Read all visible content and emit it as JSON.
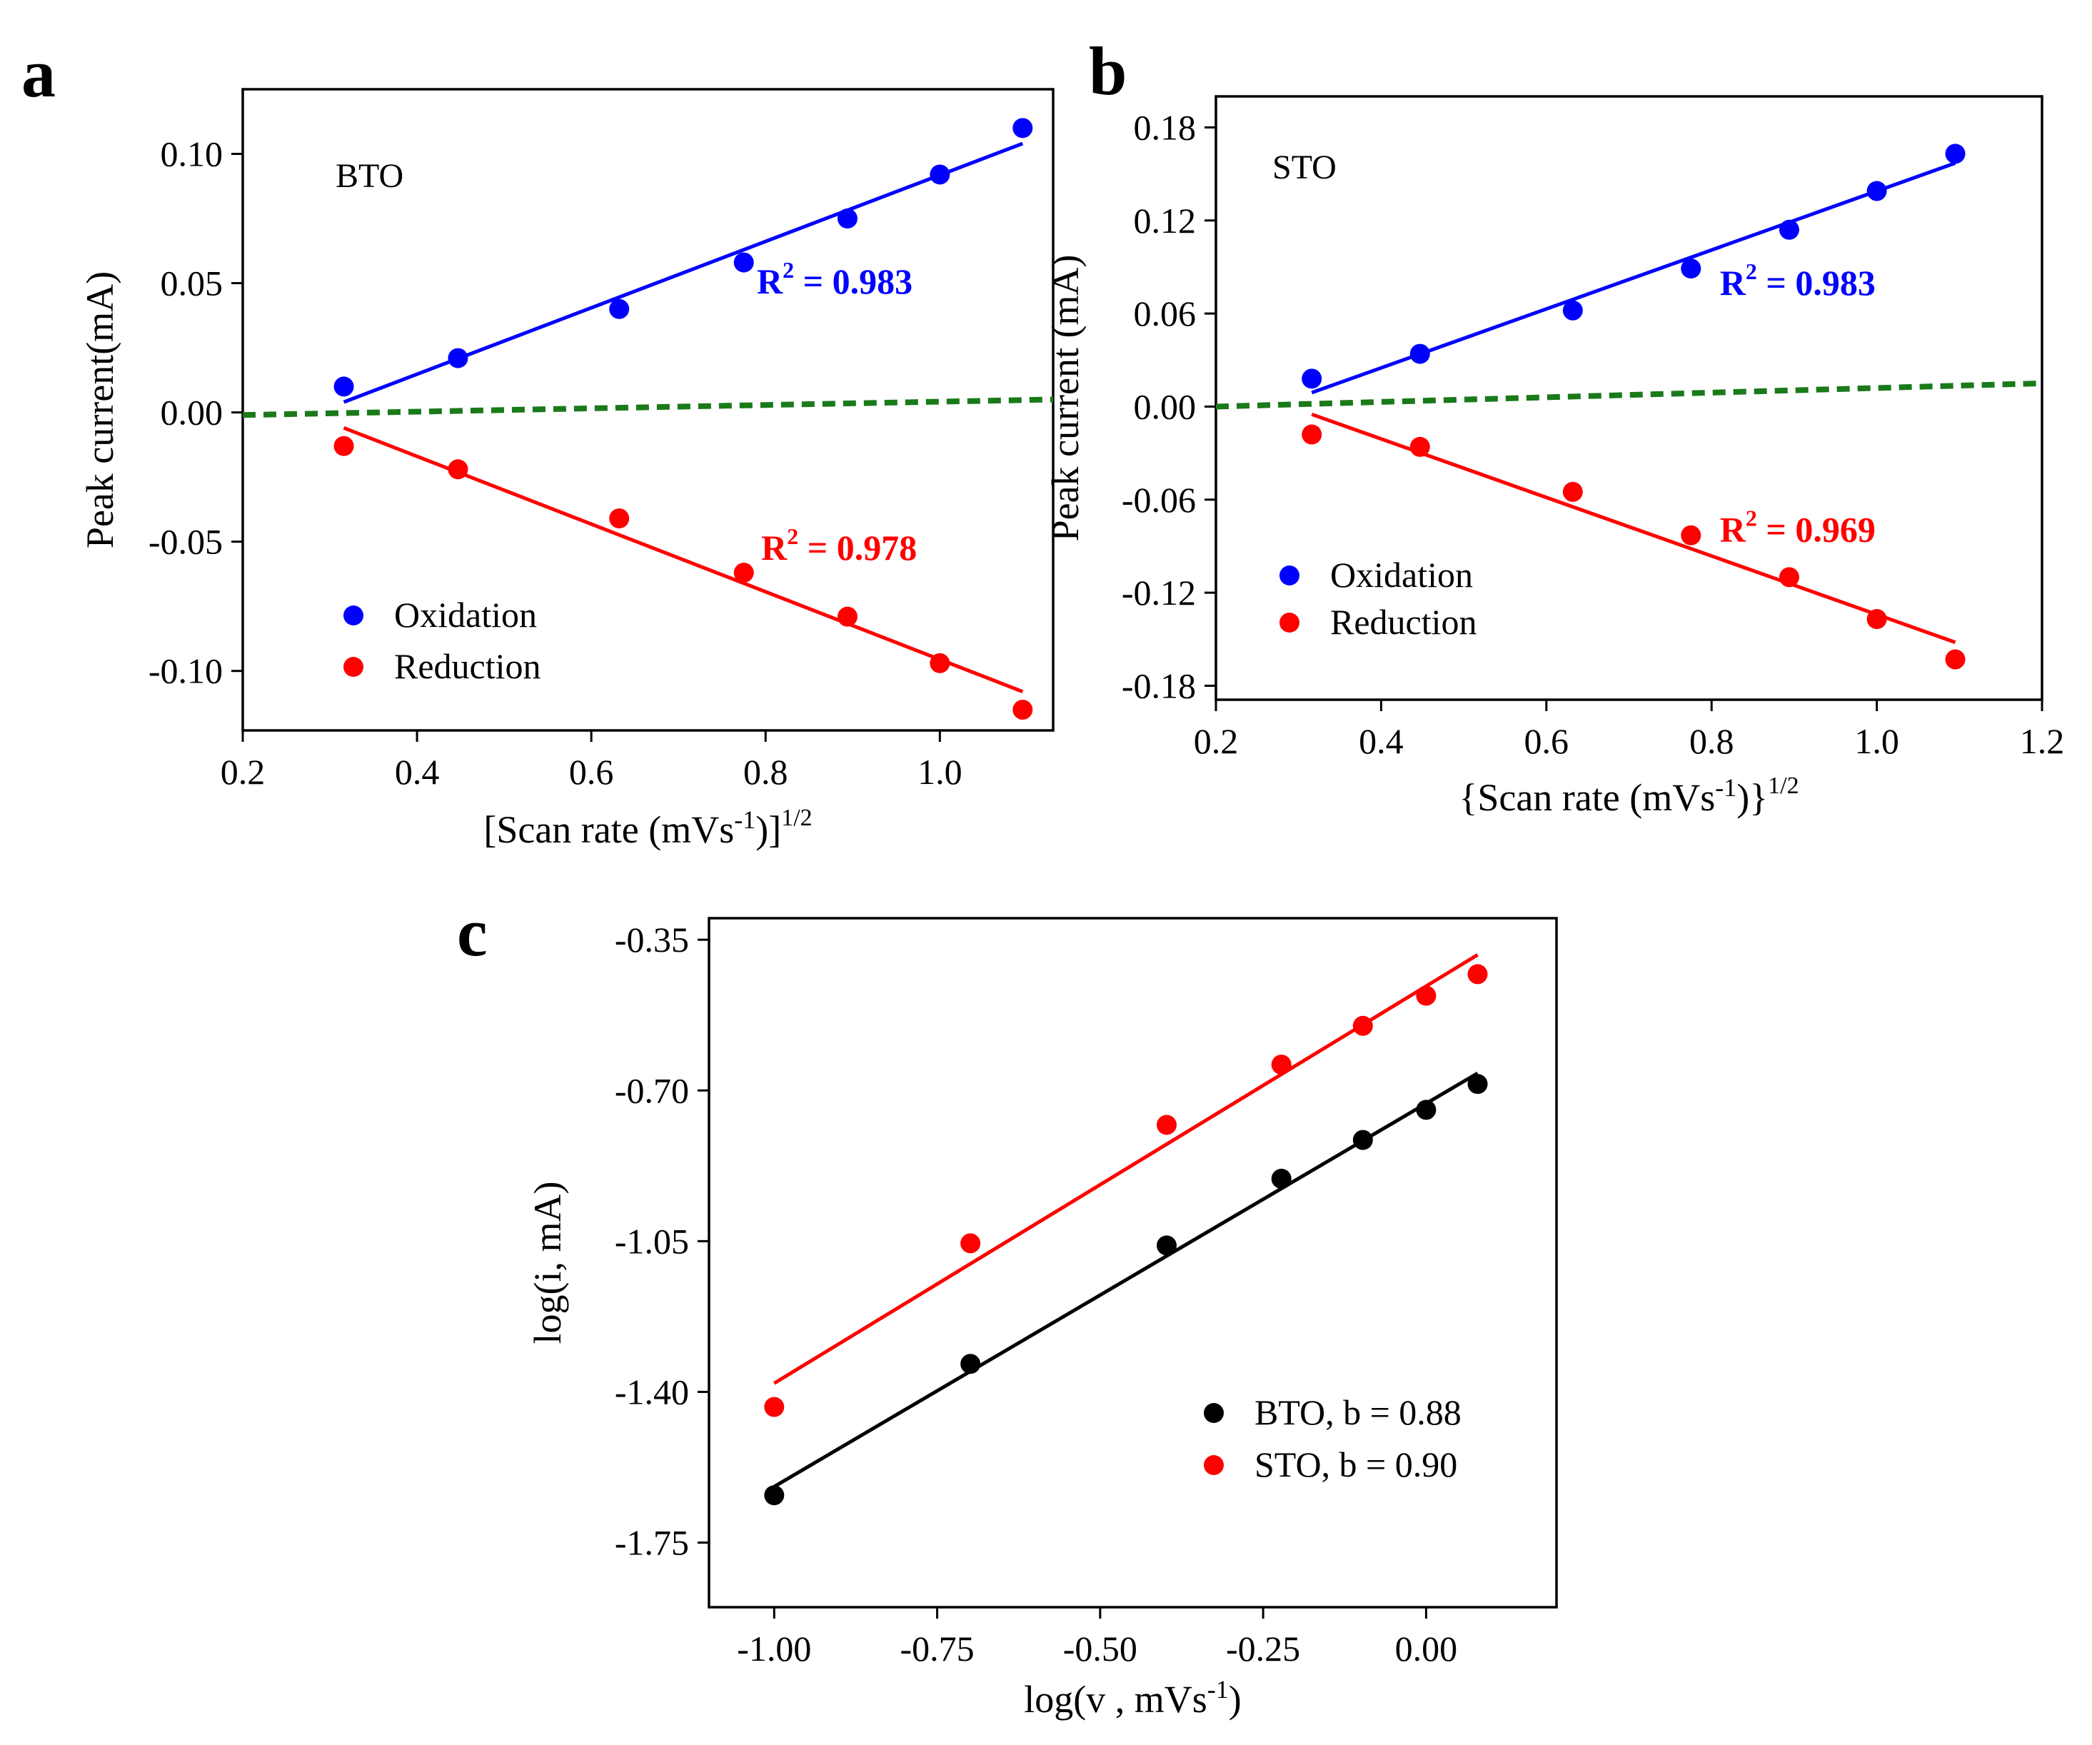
{
  "figure": {
    "panels": [
      "a",
      "b",
      "c"
    ]
  },
  "chart_data": [
    {
      "id": "a",
      "type": "scatter",
      "panel_label": "a",
      "annotation": "BTO",
      "xlabel": "[Scan rate (mVs-1)]1/2",
      "xlabel_parts": {
        "pre": "[Scan rate (mVs",
        "sup1": "-1",
        "mid": ")]",
        "sup2": "1/2"
      },
      "ylabel": "Peak current(mA)",
      "xlim": [
        0.2,
        1.13
      ],
      "ylim": [
        -0.123,
        0.125
      ],
      "xticks": [
        0.2,
        0.4,
        0.6,
        0.8,
        1.0
      ],
      "xtick_labels": [
        "0.2",
        "0.4",
        "0.6",
        "0.8",
        "1.0"
      ],
      "yticks": [
        0.1,
        0.05,
        0.0,
        -0.05,
        -0.1
      ],
      "ytick_labels": [
        "0.10",
        "0.05",
        "0.00",
        "-0.05",
        "-0.10"
      ],
      "series": [
        {
          "name": "Oxidation",
          "color": "#0000ff",
          "x": [
            0.316,
            0.447,
            0.632,
            0.775,
            0.894,
            1.0,
            1.095
          ],
          "y": [
            0.01,
            0.021,
            0.04,
            0.058,
            0.075,
            0.092,
            0.11
          ],
          "fit": {
            "x": [
              0.316,
              1.095
            ],
            "y": [
              0.004,
              0.104
            ]
          },
          "r2_text": "R2 = 0.983",
          "r2_pre": "R",
          "r2_sup": "2",
          "r2_post": " = 0.983",
          "r2_pos": [
            0.79,
            0.046
          ]
        },
        {
          "name": "Reduction",
          "color": "#ff0000",
          "x": [
            0.316,
            0.447,
            0.632,
            0.775,
            0.894,
            1.0,
            1.095
          ],
          "y": [
            -0.013,
            -0.022,
            -0.041,
            -0.062,
            -0.079,
            -0.097,
            -0.115
          ],
          "fit": {
            "x": [
              0.316,
              1.095
            ],
            "y": [
              -0.006,
              -0.108
            ]
          },
          "r2_text": "R2 = 0.978",
          "r2_pre": "R",
          "r2_sup": "2",
          "r2_post": " = 0.978",
          "r2_pos": [
            0.795,
            -0.057
          ]
        }
      ],
      "reference_line": {
        "color": "#1a7a1a",
        "style": "dashed",
        "x": [
          0.2,
          1.13
        ],
        "y": [
          -0.001,
          0.005
        ]
      },
      "legend": [
        {
          "label": "Oxidation",
          "color": "#0000ff"
        },
        {
          "label": "Reduction",
          "color": "#ff0000"
        }
      ],
      "legend_position": "lower-left"
    },
    {
      "id": "b",
      "type": "scatter",
      "panel_label": "b",
      "annotation": "STO",
      "xlabel": "{Scan rate (mVs-1)}1/2",
      "xlabel_parts": {
        "pre": "{Scan rate (mVs",
        "sup1": "-1",
        "mid": ")}",
        "sup2": "1/2"
      },
      "ylabel": "Peak current (mA)",
      "xlim": [
        0.2,
        1.2
      ],
      "ylim": [
        -0.189,
        0.2
      ],
      "xticks": [
        0.2,
        0.4,
        0.6,
        0.8,
        1.0,
        1.2
      ],
      "xtick_labels": [
        "0.2",
        "0.4",
        "0.6",
        "0.8",
        "1.0",
        "1.2"
      ],
      "yticks": [
        0.18,
        0.12,
        0.06,
        0.0,
        -0.06,
        -0.12,
        -0.18
      ],
      "ytick_labels": [
        "0.18",
        "0.12",
        "0.06",
        "0.00",
        "-0.06",
        "-0.12",
        "-0.18"
      ],
      "series": [
        {
          "name": "Oxidation",
          "color": "#0000ff",
          "x": [
            0.316,
            0.447,
            0.632,
            0.775,
            0.894,
            1.0,
            1.095
          ],
          "y": [
            0.018,
            0.034,
            0.062,
            0.089,
            0.114,
            0.139,
            0.163
          ],
          "fit": {
            "x": [
              0.316,
              1.095
            ],
            "y": [
              0.009,
              0.157
            ]
          },
          "r2_text": "R2 = 0.983",
          "r2_pre": "R",
          "r2_sup": "2",
          "r2_post": " = 0.983",
          "r2_pos": [
            0.81,
            0.072
          ]
        },
        {
          "name": "Reduction",
          "color": "#ff0000",
          "x": [
            0.316,
            0.447,
            0.632,
            0.775,
            0.894,
            1.0,
            1.095
          ],
          "y": [
            -0.018,
            -0.026,
            -0.055,
            -0.083,
            -0.11,
            -0.137,
            -0.163
          ],
          "fit": {
            "x": [
              0.316,
              1.095
            ],
            "y": [
              -0.005,
              -0.152
            ]
          },
          "r2_text": "R2 = 0.969",
          "r2_pre": "R",
          "r2_sup": "2",
          "r2_post": " = 0.969",
          "r2_pos": [
            0.81,
            -0.087
          ]
        }
      ],
      "reference_line": {
        "color": "#1a7a1a",
        "style": "dashed",
        "x": [
          0.2,
          1.2
        ],
        "y": [
          0.0,
          0.015
        ]
      },
      "legend": [
        {
          "label": "Oxidation",
          "color": "#0000ff"
        },
        {
          "label": "Reduction",
          "color": "#ff0000"
        }
      ],
      "legend_position": "lower-left"
    },
    {
      "id": "c",
      "type": "scatter",
      "panel_label": "c",
      "annotation": "",
      "xlabel": "log(v , mVs-1)",
      "xlabel_parts": {
        "pre": "log(v , mVs",
        "sup1": "-1",
        "mid": ")",
        "sup2": ""
      },
      "ylabel": "log(i, mA)",
      "xlim": [
        -1.1,
        0.2
      ],
      "ylim": [
        -1.9,
        -0.3
      ],
      "xticks": [
        -1.0,
        -0.75,
        -0.5,
        -0.25,
        0.0
      ],
      "xtick_labels": [
        "-1.00",
        "-0.75",
        "-0.50",
        "-0.25",
        "0.00"
      ],
      "yticks": [
        -0.35,
        -0.7,
        -1.05,
        -1.4,
        -1.75
      ],
      "ytick_labels": [
        "-0.35",
        "-0.70",
        "-1.05",
        "-1.40",
        "-1.75"
      ],
      "series": [
        {
          "name": "BTO, b = 0.88",
          "color": "#000000",
          "x": [
            -1.0,
            -0.699,
            -0.398,
            -0.222,
            -0.097,
            0.0,
            0.079
          ],
          "y": [
            -1.64,
            -1.335,
            -1.06,
            -0.905,
            -0.815,
            -0.745,
            -0.685
          ],
          "fit": {
            "x": [
              -1.0,
              0.079
            ],
            "y": [
              -1.62,
              -0.66
            ]
          }
        },
        {
          "name": "STO, b = 0.90",
          "color": "#ff0000",
          "x": [
            -1.0,
            -0.699,
            -0.398,
            -0.222,
            -0.097,
            0.0,
            0.079
          ],
          "y": [
            -1.435,
            -1.055,
            -0.78,
            -0.64,
            -0.55,
            -0.48,
            -0.43
          ],
          "fit": {
            "x": [
              -1.0,
              0.079
            ],
            "y": [
              -1.38,
              -0.385
            ]
          }
        }
      ],
      "legend": [
        {
          "label": "BTO, b = 0.88",
          "color": "#000000"
        },
        {
          "label": "STO, b = 0.90",
          "color": "#ff0000"
        }
      ],
      "legend_position": "lower-right"
    }
  ]
}
